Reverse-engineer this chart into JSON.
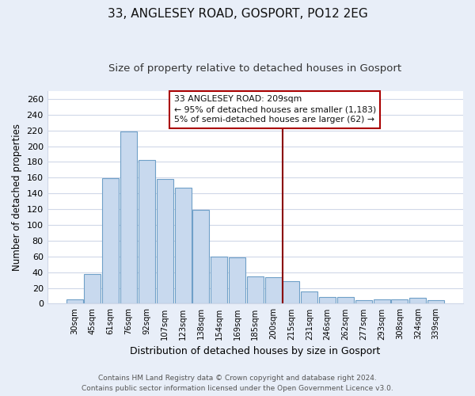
{
  "title": "33, ANGLESEY ROAD, GOSPORT, PO12 2EG",
  "subtitle": "Size of property relative to detached houses in Gosport",
  "xlabel": "Distribution of detached houses by size in Gosport",
  "ylabel": "Number of detached properties",
  "bar_labels": [
    "30sqm",
    "45sqm",
    "61sqm",
    "76sqm",
    "92sqm",
    "107sqm",
    "123sqm",
    "138sqm",
    "154sqm",
    "169sqm",
    "185sqm",
    "200sqm",
    "215sqm",
    "231sqm",
    "246sqm",
    "262sqm",
    "277sqm",
    "293sqm",
    "308sqm",
    "324sqm",
    "339sqm"
  ],
  "bar_values": [
    5,
    38,
    159,
    219,
    182,
    158,
    147,
    119,
    60,
    59,
    35,
    34,
    29,
    16,
    8,
    8,
    4,
    5,
    5,
    7,
    4
  ],
  "bar_color": "#c8d9ee",
  "bar_edge_color": "#6fa0c8",
  "vline_x": 11.5,
  "vline_color": "#8b0000",
  "annotation_title": "33 ANGLESEY ROAD: 209sqm",
  "annotation_line2": "← 95% of detached houses are smaller (1,183)",
  "annotation_line3": "5% of semi-detached houses are larger (62) →",
  "annotation_box_color": "#ffffff",
  "annotation_box_edge": "#aa0000",
  "footer_line1": "Contains HM Land Registry data © Crown copyright and database right 2024.",
  "footer_line2": "Contains public sector information licensed under the Open Government Licence v3.0.",
  "bg_color": "#e8eef8",
  "plot_bg_color": "#ffffff",
  "grid_color": "#d0d8e8",
  "ylim": [
    0,
    270
  ],
  "yticks": [
    0,
    20,
    40,
    60,
    80,
    100,
    120,
    140,
    160,
    180,
    200,
    220,
    240,
    260
  ],
  "title_fontsize": 11,
  "subtitle_fontsize": 9.5
}
